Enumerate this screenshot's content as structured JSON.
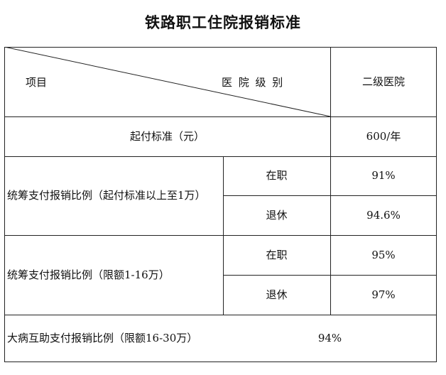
{
  "title": "铁路职工住院报销标准",
  "header": {
    "left_label": "项目",
    "right_label": "医 院 级 别",
    "level": "二级医院"
  },
  "rows": {
    "start_label": "起付标准（元）",
    "start_value": "600/年",
    "group1_label": "统筹支付报销比例（起付标准以上至1万）",
    "group1_active_label": "在职",
    "group1_active_value": "91%",
    "group1_retired_label": "退休",
    "group1_retired_value": "94.6%",
    "group2_label": "统筹支付报销比例（限额1-16万）",
    "group2_active_label": "在职",
    "group2_active_value": "95%",
    "group2_retired_label": "退休",
    "group2_retired_value": "97%",
    "major_label": "大病互助支付报销比例（限额16-30万）",
    "major_value": "94%"
  }
}
